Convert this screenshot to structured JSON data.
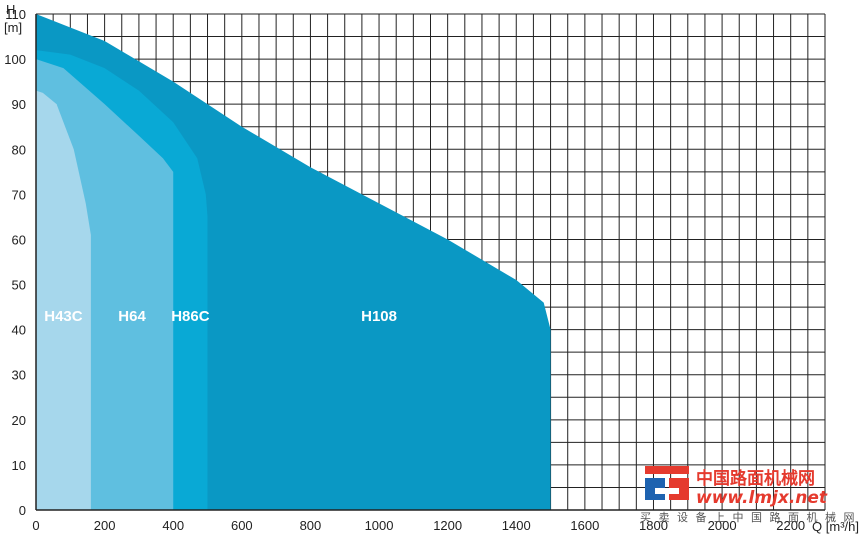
{
  "chart_data": {
    "type": "area",
    "xlabel": "Q [m³/h]",
    "ylabel_line1": "H",
    "ylabel_line2": "[m]",
    "xlim": [
      0,
      2300
    ],
    "ylim": [
      0,
      110
    ],
    "xticks": [
      0,
      200,
      400,
      600,
      800,
      1000,
      1200,
      1400,
      1600,
      1800,
      2000,
      2200
    ],
    "yticks": [
      0,
      10,
      20,
      30,
      40,
      50,
      60,
      70,
      80,
      90,
      100,
      110
    ],
    "grid_x_step": 50,
    "grid_y_step": 5,
    "grid": true,
    "series": [
      {
        "name": "H108",
        "color": "#0a98c4",
        "points": [
          [
            0,
            110
          ],
          [
            200,
            104
          ],
          [
            400,
            95
          ],
          [
            600,
            85
          ],
          [
            800,
            76
          ],
          [
            1000,
            68
          ],
          [
            1200,
            60
          ],
          [
            1400,
            51
          ],
          [
            1480,
            46
          ],
          [
            1500,
            40
          ],
          [
            1500,
            0
          ]
        ]
      },
      {
        "name": "H86C",
        "color": "#09a9d5",
        "points": [
          [
            0,
            102
          ],
          [
            100,
            101
          ],
          [
            200,
            98
          ],
          [
            300,
            93
          ],
          [
            400,
            86
          ],
          [
            470,
            78
          ],
          [
            495,
            70
          ],
          [
            500,
            65
          ],
          [
            500,
            0
          ]
        ]
      },
      {
        "name": "H64",
        "color": "#5fbfe0",
        "points": [
          [
            0,
            100
          ],
          [
            80,
            98
          ],
          [
            200,
            90
          ],
          [
            300,
            83
          ],
          [
            370,
            78
          ],
          [
            400,
            75
          ],
          [
            400,
            0
          ]
        ]
      },
      {
        "name": "H43C",
        "color": "#a6d7ec",
        "points": [
          [
            0,
            93
          ],
          [
            20,
            92.5
          ],
          [
            60,
            90
          ],
          [
            110,
            80
          ],
          [
            145,
            68
          ],
          [
            160,
            61
          ],
          [
            160,
            0
          ]
        ]
      }
    ]
  },
  "watermark": {
    "cn": "中国路面机械网",
    "url": "www.lmjx.net",
    "sub": "买 卖 设 备 上 中 国 路 面 机 械 网"
  }
}
